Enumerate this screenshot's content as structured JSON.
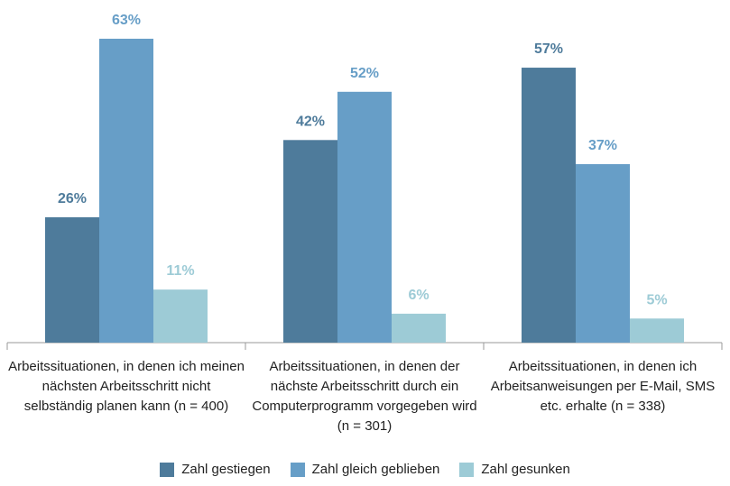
{
  "chart_data": {
    "type": "bar",
    "categories": [
      "Arbeitssituationen, in denen ich meinen nächsten Arbeitsschritt nicht selbständig planen kann (n = 400)",
      "Arbeitssituationen, in denen der nächste Arbeitsschritt durch ein Computerprogramm vorgegeben wird (n = 301)",
      "Arbeitssituationen, in denen ich Arbeitsanweisungen per E-Mail, SMS etc. erhalte (n = 338)"
    ],
    "series": [
      {
        "name": "Zahl gestiegen",
        "color": "#4e7b9b",
        "values": [
          26,
          42,
          57
        ],
        "value_labels": [
          "26%",
          "42%",
          "57%"
        ]
      },
      {
        "name": "Zahl gleich geblieben",
        "color": "#679ec7",
        "values": [
          63,
          52,
          37
        ],
        "value_labels": [
          "63%",
          "52%",
          "37%"
        ]
      },
      {
        "name": "Zahl gesunken",
        "color": "#9dcbd6",
        "values": [
          11,
          6,
          5
        ],
        "value_labels": [
          "11%",
          "6%",
          "5%"
        ]
      }
    ]
  }
}
